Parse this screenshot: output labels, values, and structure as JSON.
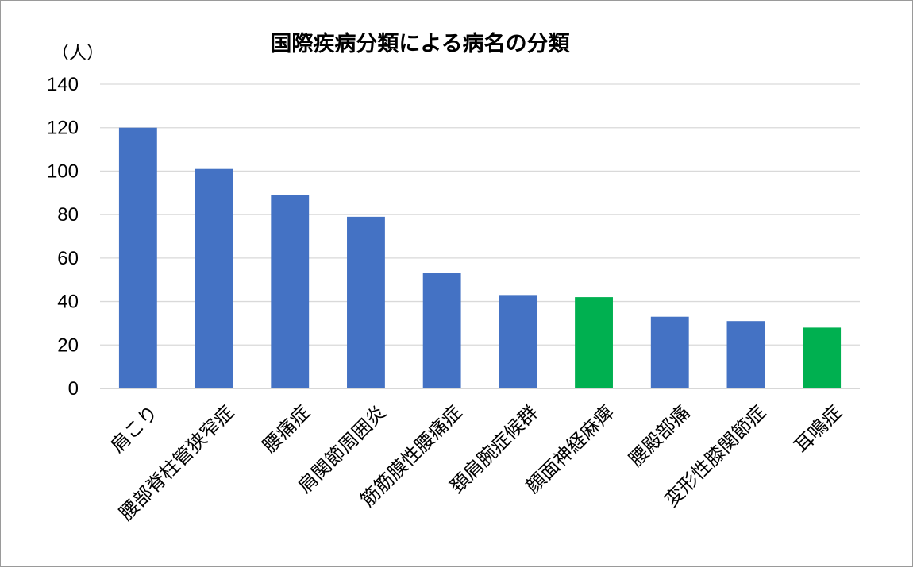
{
  "chart_data": {
    "type": "bar",
    "title": "国際疾病分類による病名の分類",
    "ylabel": "（人）",
    "xlabel": "",
    "ylim": [
      0,
      140
    ],
    "yticks": [
      0,
      20,
      40,
      60,
      80,
      100,
      120,
      140
    ],
    "grid": true,
    "legend": "none",
    "categories": [
      "肩こり",
      "腰部脊柱管狭窄症",
      "腰痛症",
      "肩関節周囲炎",
      "筋筋膜性腰痛症",
      "頚肩腕症候群",
      "顔面神経麻痺",
      "腰殿部痛",
      "変形性膝関節症",
      "耳鳴症"
    ],
    "values": [
      120,
      101,
      89,
      79,
      53,
      43,
      42,
      33,
      31,
      28
    ],
    "bar_colors": [
      "#4472C4",
      "#4472C4",
      "#4472C4",
      "#4472C4",
      "#4472C4",
      "#4472C4",
      "#00B050",
      "#4472C4",
      "#4472C4",
      "#00B050"
    ]
  }
}
